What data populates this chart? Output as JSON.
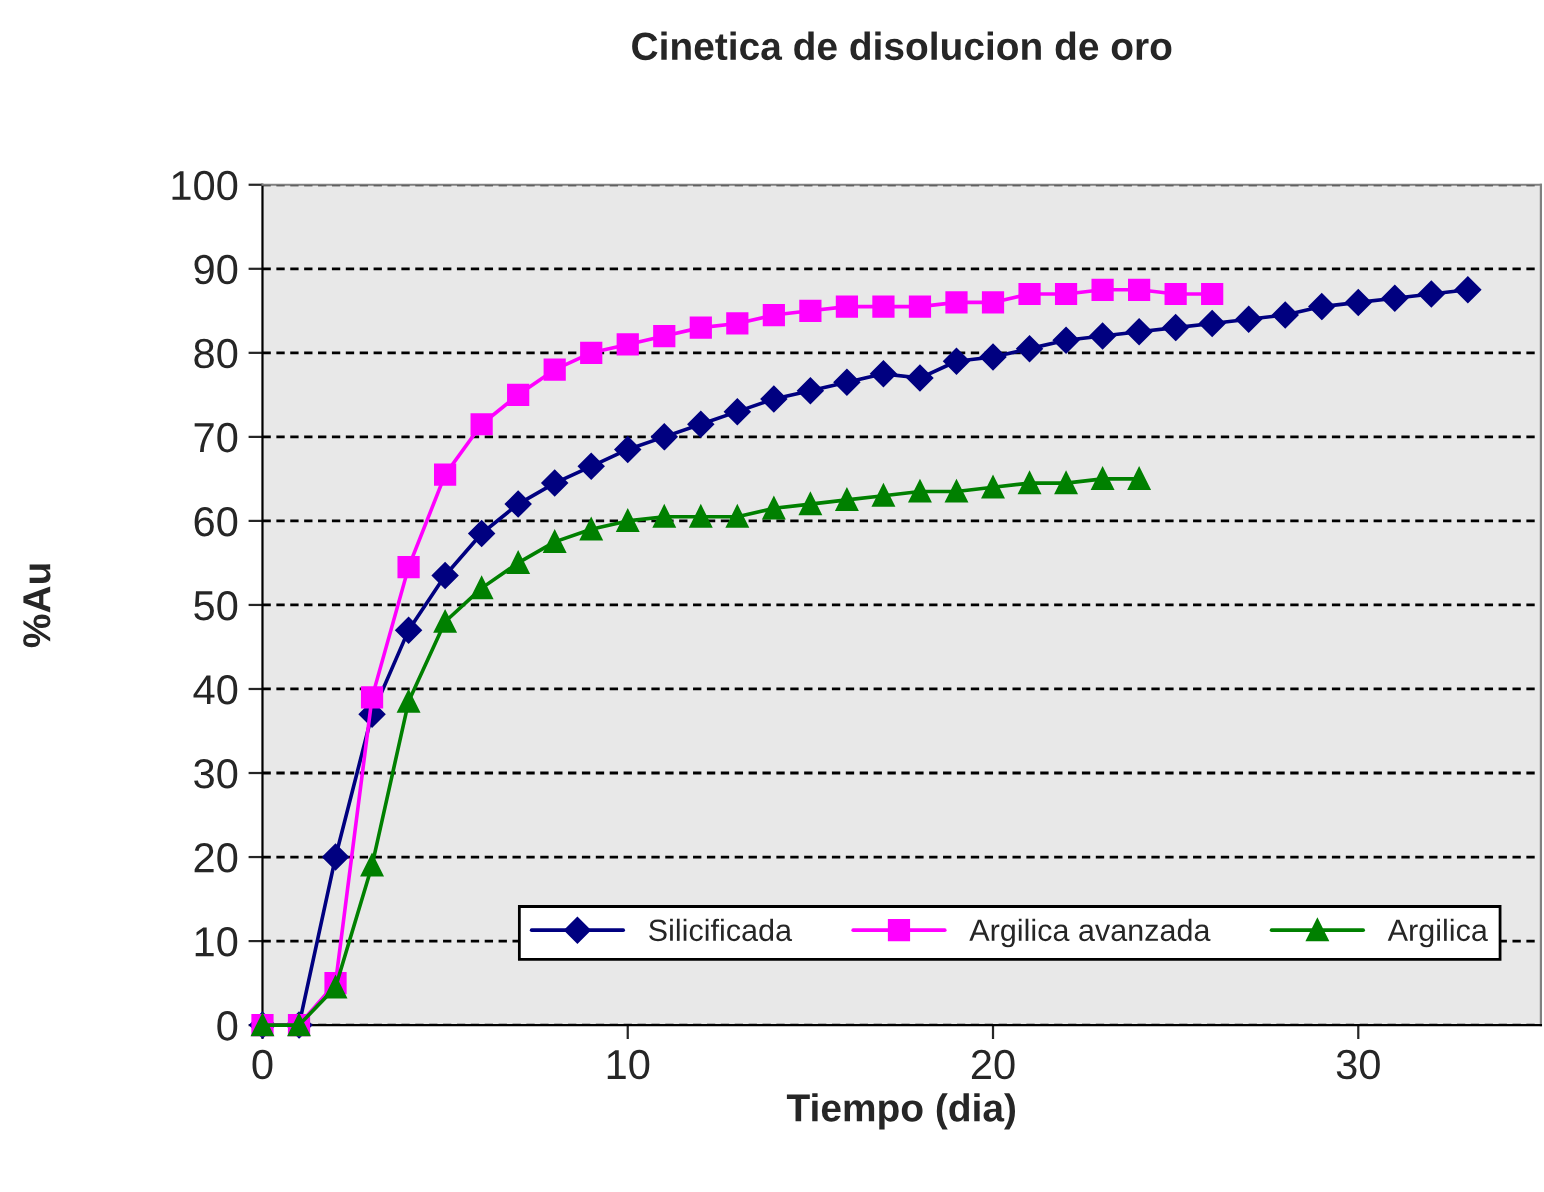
{
  "chart_data": {
    "type": "line",
    "title": "Cinetica de disolucion de oro",
    "xlabel": "Tiempo (dia)",
    "ylabel": "%Au",
    "xlim": [
      0,
      35
    ],
    "xticks": [
      0,
      10,
      20,
      30
    ],
    "ylim": [
      0,
      100
    ],
    "yticks": [
      0,
      10,
      20,
      30,
      40,
      50,
      60,
      70,
      80,
      90,
      100
    ],
    "grid": "y",
    "legend": "bottom right",
    "series": [
      {
        "name": "Silicificada",
        "color": "#000080",
        "marker": "diamond",
        "x": [
          0,
          1,
          2,
          3,
          4,
          5,
          6,
          7,
          8,
          9,
          10,
          11,
          12,
          13,
          14,
          15,
          16,
          17,
          18,
          19,
          20,
          21,
          22,
          23,
          24,
          25,
          26,
          27,
          28,
          29,
          30,
          31,
          32,
          33
        ],
        "values": [
          0,
          0,
          20,
          37,
          47,
          53.5,
          58.5,
          62,
          64.5,
          66.5,
          68.5,
          70,
          71.5,
          73,
          74.5,
          75.5,
          76.5,
          77.5,
          77,
          79,
          79.5,
          80.5,
          81.5,
          82,
          82.5,
          83,
          83.5,
          84,
          84.5,
          85.5,
          86,
          86.5,
          87,
          87.5
        ]
      },
      {
        "name": "Argilica avanzada",
        "color": "#ff00ff",
        "marker": "square",
        "x": [
          0,
          1,
          2,
          3,
          4,
          5,
          6,
          7,
          8,
          9,
          10,
          11,
          12,
          13,
          14,
          15,
          16,
          17,
          18,
          19,
          20,
          21,
          22,
          23,
          24,
          25,
          26
        ],
        "values": [
          0,
          0,
          5,
          39,
          54.5,
          65.5,
          71.5,
          75,
          78,
          80,
          81,
          82,
          83,
          83.5,
          84.5,
          85,
          85.5,
          85.5,
          85.5,
          86,
          86,
          87,
          87,
          87.5,
          87.5,
          87,
          87
        ]
      },
      {
        "name": "Argilica",
        "color": "#008000",
        "marker": "triangle",
        "x": [
          0,
          1,
          2,
          3,
          4,
          5,
          6,
          7,
          8,
          9,
          10,
          11,
          12,
          13,
          14,
          15,
          16,
          17,
          18,
          19,
          20,
          21,
          22,
          23,
          24
        ],
        "values": [
          0,
          0,
          4.5,
          19,
          38.5,
          48,
          52,
          55,
          57.5,
          59,
          60,
          60.5,
          60.5,
          60.5,
          61.5,
          62,
          62.5,
          63,
          63.5,
          63.5,
          64,
          64.5,
          64.5,
          65,
          65
        ]
      }
    ]
  }
}
